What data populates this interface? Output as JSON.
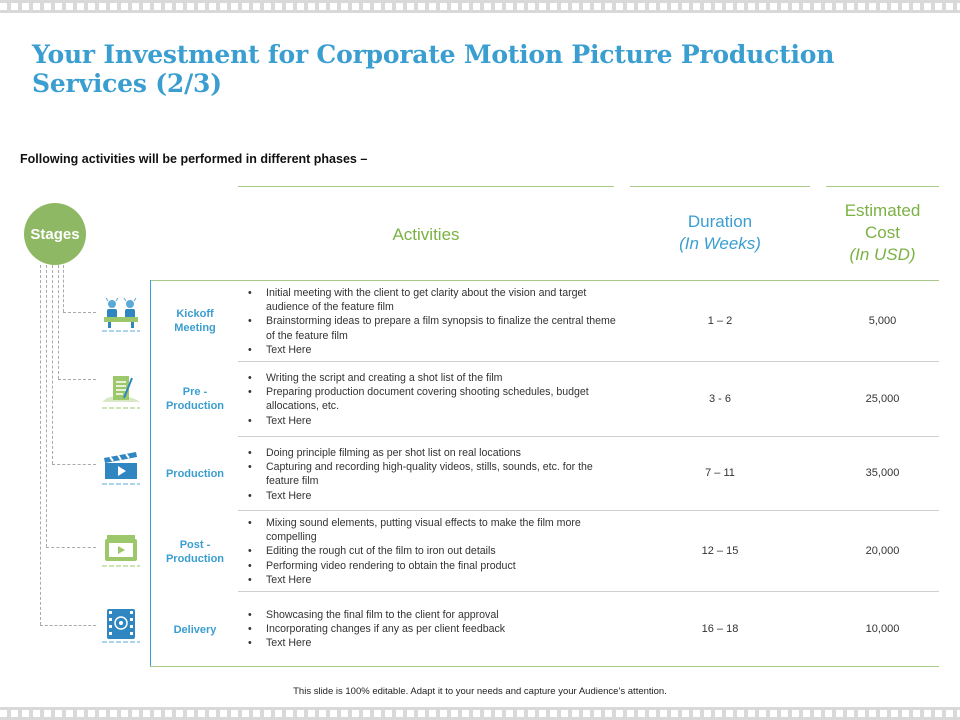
{
  "title": "Your Investment for Corporate Motion Picture Production Services (2/3)",
  "subtitle": "Following activities will be performed in different phases –",
  "stages_label": "Stages",
  "headers": {
    "activities": "Activities",
    "duration_main": "Duration",
    "duration_unit": "(In Weeks)",
    "cost_main_1": "Estimated",
    "cost_main_2": "Cost",
    "cost_unit": "(In USD)"
  },
  "rows": [
    {
      "stage_line1": "Kickoff",
      "stage_line2": "Meeting",
      "icon": "meeting-icon",
      "activities": [
        "Initial meeting with the client to get clarity about the vision and target audience of the feature film",
        "Brainstorming ideas to prepare a film synopsis to finalize the central theme of the feature film",
        "Text Here"
      ],
      "duration": "1 – 2",
      "cost": "5,000"
    },
    {
      "stage_line1": "Pre -",
      "stage_line2": "Production",
      "icon": "script-document-icon",
      "activities": [
        "Writing the script and creating a shot list of the film",
        "Preparing production document covering shooting schedules, budget allocations, etc.",
        "Text Here"
      ],
      "duration": "3 -  6",
      "cost": "25,000"
    },
    {
      "stage_line1": "Production",
      "stage_line2": "",
      "icon": "clapperboard-icon",
      "activities": [
        "Doing principle filming as per shot list on real locations",
        "Capturing and recording high-quality videos, stills, sounds, etc. for the feature film",
        "Text Here"
      ],
      "duration": "7 – 11",
      "cost": "35,000"
    },
    {
      "stage_line1": "Post -",
      "stage_line2": "Production",
      "icon": "video-editing-icon",
      "activities": [
        "Mixing sound elements, putting visual effects to make the film more compelling",
        "Editing the rough cut of the film to iron out details",
        "Performing video rendering to obtain the final product",
        "Text Here"
      ],
      "duration": "12 – 15",
      "cost": "20,000"
    },
    {
      "stage_line1": "Delivery",
      "stage_line2": "",
      "icon": "film-reel-icon",
      "activities": [
        "Showcasing the final film to the client for approval",
        "Incorporating changes if any as per client feedback",
        "Text Here"
      ],
      "duration": "16 – 18",
      "cost": "10,000"
    }
  ],
  "footer": "This slide is 100% editable.  Adapt it to your needs and capture your Audience’s attention.",
  "colors": {
    "title_blue": "#3a9ed0",
    "accent_green": "#7bb143",
    "circle_green": "#8fb864"
  }
}
